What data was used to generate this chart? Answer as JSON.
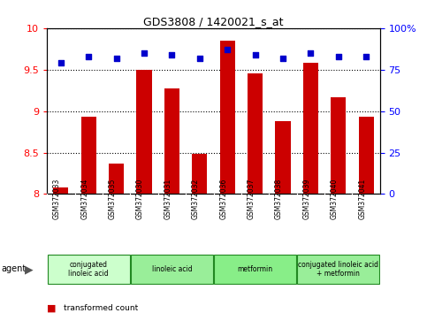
{
  "title": "GDS3808 / 1420021_s_at",
  "samples": [
    "GSM372033",
    "GSM372034",
    "GSM372035",
    "GSM372030",
    "GSM372031",
    "GSM372032",
    "GSM372036",
    "GSM372037",
    "GSM372038",
    "GSM372039",
    "GSM372040",
    "GSM372041"
  ],
  "transformed_count": [
    8.08,
    8.93,
    8.37,
    9.5,
    9.27,
    8.48,
    9.85,
    9.45,
    8.88,
    9.58,
    9.17,
    8.93
  ],
  "percentile_rank": [
    79,
    83,
    82,
    85,
    84,
    82,
    87,
    84,
    82,
    85,
    83,
    83
  ],
  "ylim_left": [
    8.0,
    10.0
  ],
  "ylim_right": [
    0,
    100
  ],
  "yticks_left": [
    8.0,
    8.5,
    9.0,
    9.5,
    10.0
  ],
  "yticks_right": [
    0,
    25,
    50,
    75,
    100
  ],
  "groups": [
    {
      "label": "conjugated\nlinoleic acid",
      "start": 0,
      "end": 3,
      "color": "#ccffcc"
    },
    {
      "label": "linoleic acid",
      "start": 3,
      "end": 6,
      "color": "#99ee99"
    },
    {
      "label": "metformin",
      "start": 6,
      "end": 9,
      "color": "#88ee88"
    },
    {
      "label": "conjugated linoleic acid\n+ metformin",
      "start": 9,
      "end": 12,
      "color": "#99ee99"
    }
  ],
  "bar_color": "#cc0000",
  "dot_color": "#0000cc",
  "bg_color": "#ffffff",
  "sample_bg_color": "#bbbbbb",
  "group_border_color": "#228822",
  "bar_width": 0.55
}
